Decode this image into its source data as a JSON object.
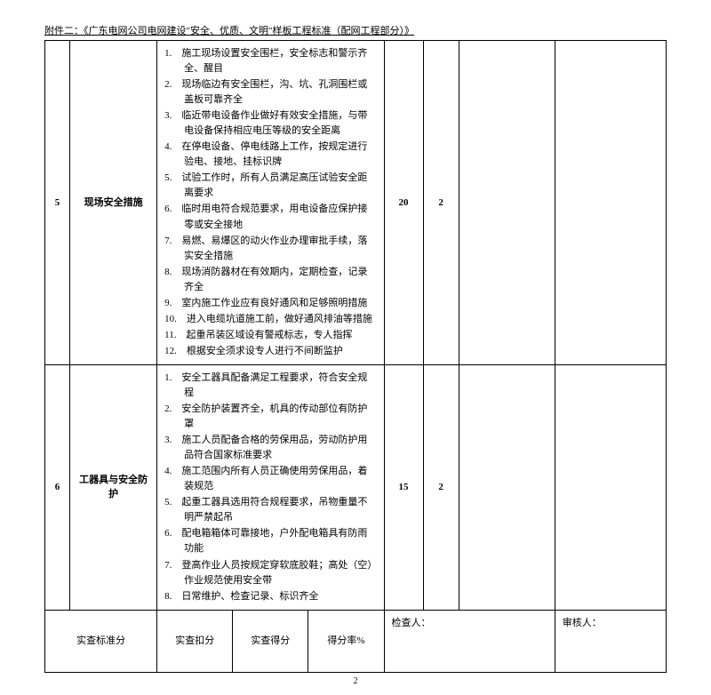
{
  "header": "附件二：《广东电网公司电网建设\"安全、优质、文明\"样板工程标准（配网工程部分）》",
  "rows": [
    {
      "num": "5",
      "title": "现场安全措施",
      "score1": "20",
      "score2": "2",
      "items": [
        "施工现场设置安全围栏，安全标志和警示齐全、醒目",
        "现场临边有安全围栏，沟、坑、孔洞围栏或盖板可靠齐全",
        "临近带电设备作业做好有效安全措施，与带电设备保持相应电压等级的安全距离",
        "在停电设备、停电线路上工作，按规定进行验电、接地、挂标识牌",
        "试验工作时，所有人员满足高压试验安全距离要求",
        "临时用电符合规范要求，用电设备应保护接零或安全接地",
        "易燃、易爆区的动火作业办理审批手续，落实安全措施",
        "现场消防器材在有效期内，定期检查，记录齐全",
        "室内施工作业应有良好通风和足够照明措施",
        "进入电缆坑道施工前，做好通风排油等措施",
        "起重吊装区域设有警戒标志，专人指挥",
        "根据安全须求设专人进行不间断监护"
      ]
    },
    {
      "num": "6",
      "title": "工器具与安全防护",
      "score1": "15",
      "score2": "2",
      "items": [
        "安全工器具配备满足工程要求，符合安全规程",
        "安全防护装置齐全，机具的传动部位有防护罩",
        "施工人员配备合格的劳保用品，劳动防护用品符合国家标准要求",
        "施工范围内所有人员正确使用劳保用品，着装规范",
        "起重工器具选用符合规程要求，吊物重量不明严禁起吊",
        "配电箱箱体可靠接地，户外配电箱具有防雨功能",
        "登高作业人员按规定穿软底胶鞋；高处（空）作业规范使用安全带",
        "日常维护、检查记录、标识齐全"
      ]
    }
  ],
  "footer": {
    "col1": "实查标准分",
    "col2": "实查扣分",
    "col3": "实查得分",
    "col4": "得分率%",
    "checker": "检查人：",
    "auditor": "审核人："
  },
  "pageNum": "2"
}
